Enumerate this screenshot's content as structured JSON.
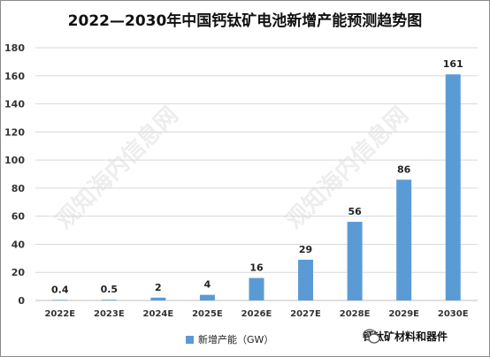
{
  "title": "2022—2030年中国钙钛矿电池新增产能预测趋势图",
  "legend_label": "新增产能（GW）",
  "source_label": "钙钛矿材料和器件",
  "watermark": "观知海内信息网",
  "colors": {
    "bar": "#5b9bd5",
    "grid": "#d9d9d9",
    "axis": "#bfbfbf"
  },
  "chart_data": {
    "type": "bar",
    "title": "2022—2030年中国钙钛矿电池新增产能预测趋势图",
    "xlabel": "",
    "ylabel": "",
    "categories": [
      "2022E",
      "2023E",
      "2024E",
      "2025E",
      "2026E",
      "2027E",
      "2028E",
      "2029E",
      "2030E"
    ],
    "series": [
      {
        "name": "新增产能（GW）",
        "values": [
          0.4,
          0.5,
          2,
          4,
          16,
          29,
          56,
          86,
          161
        ],
        "labels": [
          "0.4",
          "0.5",
          "2",
          "4",
          "16",
          "29",
          "56",
          "86",
          "161"
        ]
      }
    ],
    "ylim": [
      0,
      180
    ],
    "yticks": [
      0,
      20,
      40,
      60,
      80,
      100,
      120,
      140,
      160,
      180
    ],
    "grid": true,
    "legend_position": "bottom"
  }
}
